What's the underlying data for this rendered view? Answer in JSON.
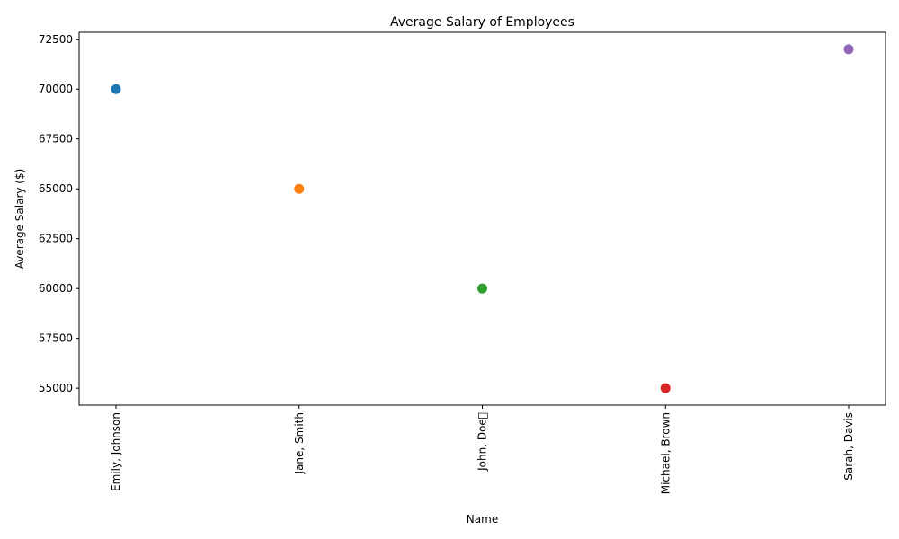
{
  "chart_data": {
    "type": "scatter",
    "title": "Average Salary of Employees",
    "xlabel": "Name",
    "ylabel": "Average Salary ($)",
    "categories": [
      "Emily, Johnson",
      "Jane, Smith",
      "John, Doe\u0000",
      "Michael, Brown",
      "Sarah, Davis"
    ],
    "values": [
      70000,
      65000,
      60000,
      55000,
      72000
    ],
    "colors": [
      "#1f77b4",
      "#ff7f0e",
      "#2ca02c",
      "#d62728",
      "#9467bd"
    ],
    "ylim": [
      54150,
      72850
    ],
    "yticks": [
      55000,
      57500,
      60000,
      62500,
      65000,
      67500,
      70000,
      72500
    ],
    "ytick_labels": [
      "55000",
      "57500",
      "60000",
      "62500",
      "65000",
      "67500",
      "70000",
      "72500"
    ],
    "grid": false,
    "legend": "none"
  }
}
